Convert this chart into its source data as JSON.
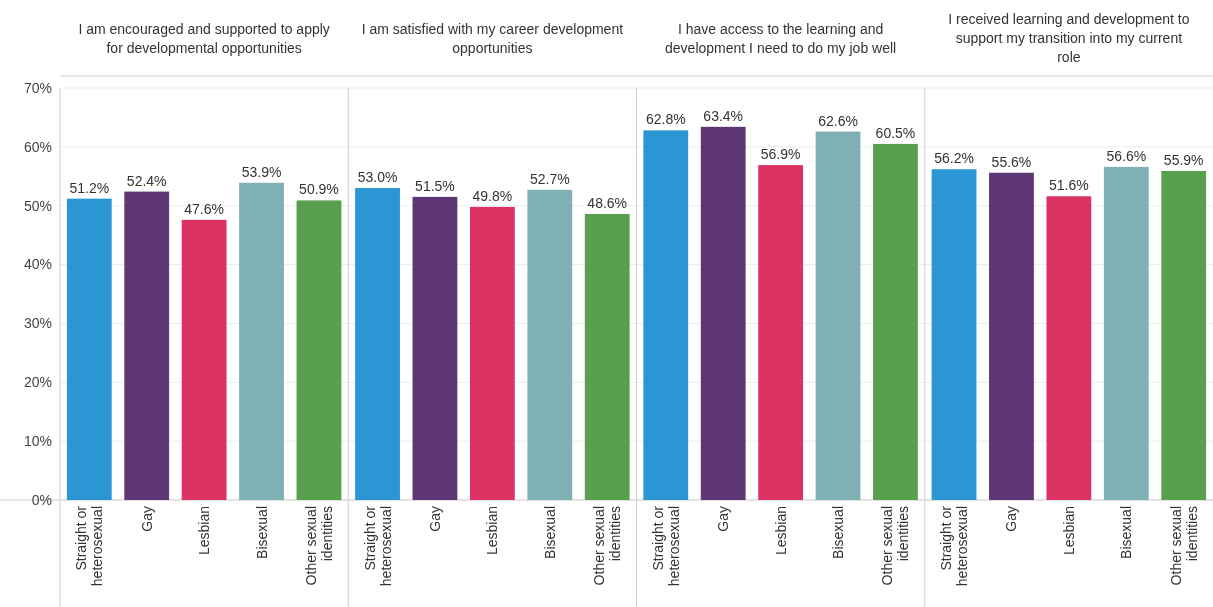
{
  "chart_data": [
    {
      "type": "bar",
      "title": "I am encouraged and supported to apply for developmental opportunities",
      "categories": [
        "Straight or heterosexual",
        "Gay",
        "Lesbian",
        "Bisexual",
        "Other sexual identities"
      ],
      "values": [
        51.2,
        52.4,
        47.6,
        53.9,
        50.9
      ],
      "value_labels": [
        "51.2%",
        "52.4%",
        "47.6%",
        "53.9%",
        "50.9%"
      ],
      "colors": [
        "#2a96d4",
        "#5e3673",
        "#dc3163",
        "#7fb0b3",
        "#58a04d"
      ],
      "ylim": [
        0,
        70
      ],
      "yticks": [
        {
          "value": 0,
          "label": "0%"
        },
        {
          "value": 10,
          "label": "10%"
        },
        {
          "value": 20,
          "label": "20%"
        },
        {
          "value": 30,
          "label": "30%"
        },
        {
          "value": 40,
          "label": "40%"
        },
        {
          "value": 50,
          "label": "50%"
        },
        {
          "value": 60,
          "label": "60%"
        },
        {
          "value": 70,
          "label": "70%"
        }
      ],
      "grid": "y"
    },
    {
      "type": "bar",
      "title": "I am satisfied with my career development opportunities",
      "categories": [
        "Straight or heterosexual",
        "Gay",
        "Lesbian",
        "Bisexual",
        "Other sexual identities"
      ],
      "values": [
        53.0,
        51.5,
        49.8,
        52.7,
        48.6
      ],
      "value_labels": [
        "53.0%",
        "51.5%",
        "49.8%",
        "52.7%",
        "48.6%"
      ],
      "colors": [
        "#2a96d4",
        "#5e3673",
        "#dc3163",
        "#7fb0b3",
        "#58a04d"
      ],
      "ylim": [
        0,
        70
      ],
      "yticks": [
        {
          "value": 0,
          "label": null
        },
        {
          "value": 10,
          "label": null
        },
        {
          "value": 20,
          "label": null
        },
        {
          "value": 30,
          "label": null
        },
        {
          "value": 40,
          "label": null
        },
        {
          "value": 50,
          "label": null
        },
        {
          "value": 60,
          "label": null
        },
        {
          "value": 70,
          "label": null
        }
      ],
      "grid": "y",
      "tick_labels": "x"
    },
    {
      "type": "bar",
      "title": "I have access to the learning and development I need to do my job well",
      "categories": [
        "Straight or heterosexual",
        "Gay",
        "Lesbian",
        "Bisexual",
        "Other sexual identities"
      ],
      "values": [
        62.8,
        63.4,
        56.9,
        62.6,
        60.5
      ],
      "value_labels": [
        "62.8%",
        "63.4%",
        "56.9%",
        "62.6%",
        "60.5%"
      ],
      "colors": [
        "#2a96d4",
        "#5e3673",
        "#dc3163",
        "#7fb0b3",
        "#58a04d"
      ],
      "ylim": [
        0,
        70
      ],
      "yticks": [
        {
          "value": 0,
          "label": null
        },
        {
          "value": 10,
          "label": null
        },
        {
          "value": 20,
          "label": null
        },
        {
          "value": 30,
          "label": null
        },
        {
          "value": 40,
          "label": null
        },
        {
          "value": 50,
          "label": null
        },
        {
          "value": 60,
          "label": null
        },
        {
          "value": 70,
          "label": null
        }
      ],
      "grid": "y",
      "tick_labels": "x"
    },
    {
      "type": "bar",
      "title": "I received learning and development to support my transition into my current role",
      "categories": [
        "Straight or heterosexual",
        "Gay",
        "Lesbian",
        "Bisexual",
        "Other sexual identities"
      ],
      "values": [
        56.2,
        55.6,
        51.6,
        56.6,
        55.9
      ],
      "value_labels": [
        "56.2%",
        "55.6%",
        "51.6%",
        "56.6%",
        "55.9%"
      ],
      "colors": [
        "#2a96d4",
        "#5e3673",
        "#dc3163",
        "#7fb0b3",
        "#58a04d"
      ],
      "ylim": [
        0,
        70
      ],
      "yticks": [
        {
          "value": 0,
          "label": null
        },
        {
          "value": 10,
          "label": null
        },
        {
          "value": 20,
          "label": null
        },
        {
          "value": 30,
          "label": null
        },
        {
          "value": 40,
          "label": null
        },
        {
          "value": 50,
          "label": null
        },
        {
          "value": 60,
          "label": null
        },
        {
          "value": 70,
          "label": null
        }
      ],
      "grid": "y",
      "tick_labels": "x"
    }
  ]
}
